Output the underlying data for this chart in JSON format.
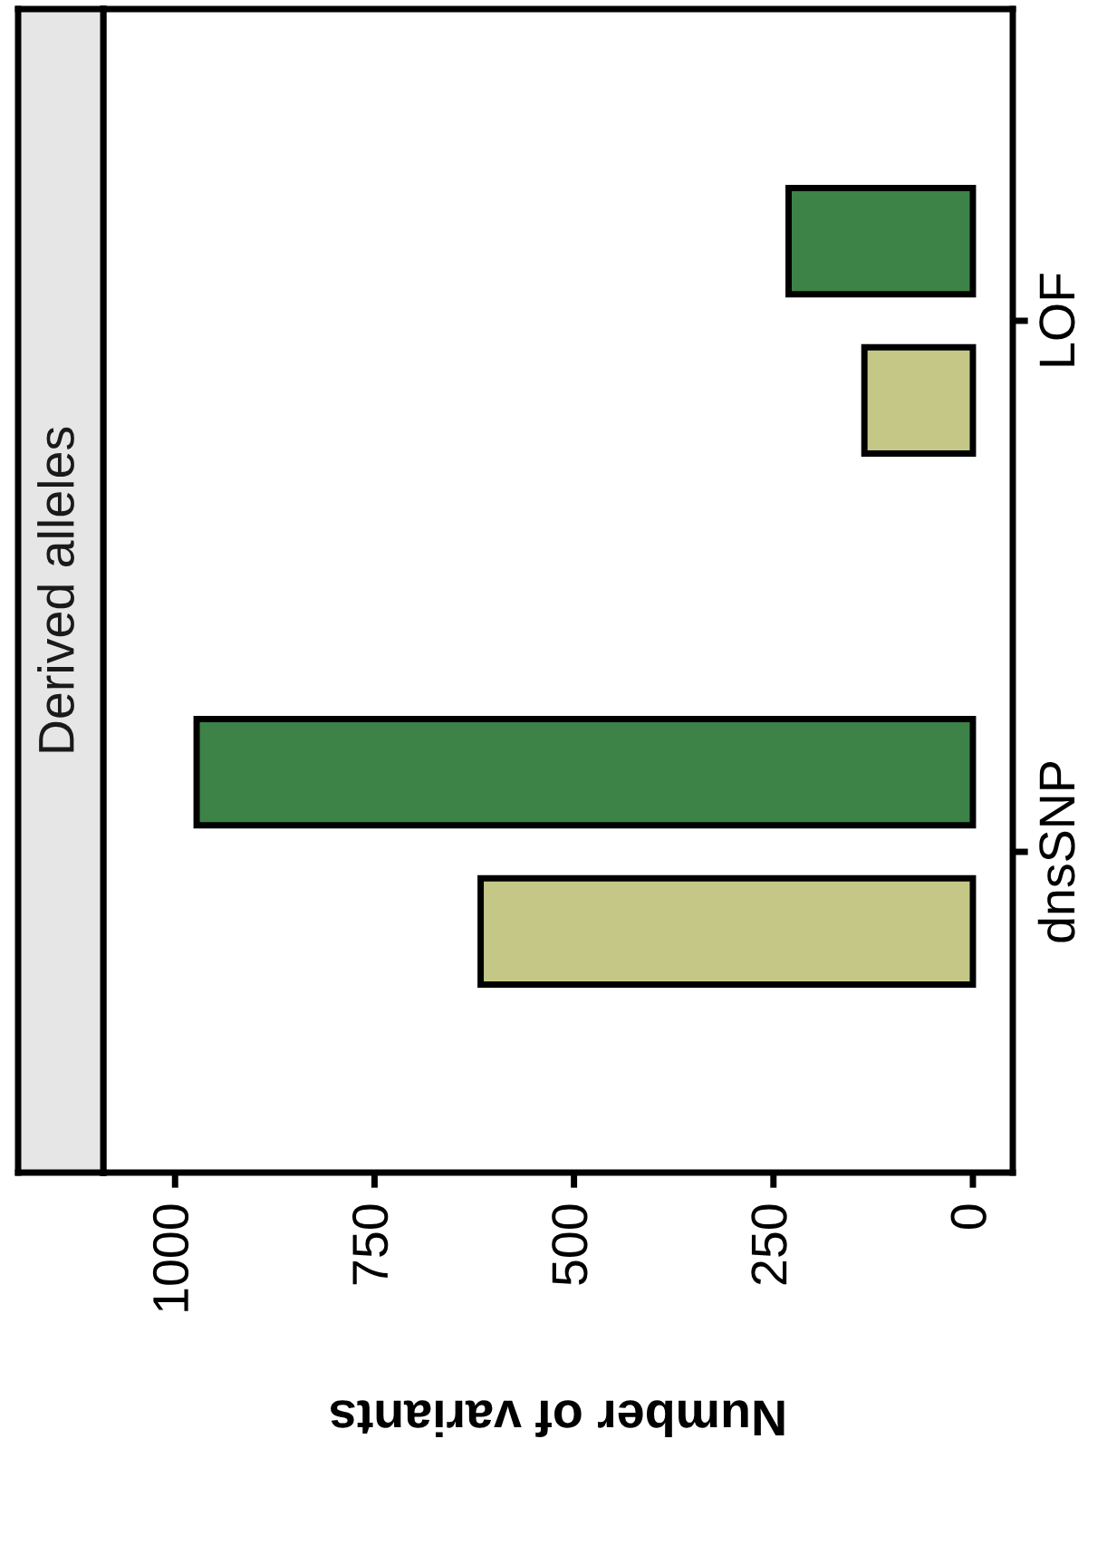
{
  "chart_data": {
    "type": "bar",
    "orientation": "horizontal",
    "title": "Derived alleles",
    "xlabel": "Number of variants",
    "categories": [
      "LOF",
      "dnsSNP"
    ],
    "series": [
      {
        "color": "#c5c787",
        "values": [
          136,
          617
        ]
      },
      {
        "color": "#3d8247",
        "values": [
          231,
          973
        ]
      }
    ],
    "xlim": [
      1090,
      -50
    ],
    "xticks": [
      1000,
      750,
      500,
      250,
      0
    ],
    "grid": false,
    "legend": false
  }
}
